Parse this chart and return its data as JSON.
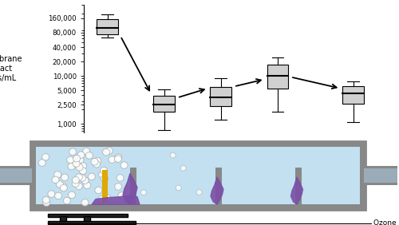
{
  "boxplot_data": {
    "positions": [
      1,
      2.2,
      3.4,
      4.6,
      6.2
    ],
    "boxes": [
      {
        "q1": 75000,
        "median": 100000,
        "q3": 155000,
        "whislo": 63000,
        "whishi": 192000
      },
      {
        "q1": 1800,
        "median": 2500,
        "q3": 3800,
        "whislo": 750,
        "whishi": 5300
      },
      {
        "q1": 2300,
        "median": 3600,
        "q3": 5800,
        "whislo": 1200,
        "whishi": 8800
      },
      {
        "q1": 5500,
        "median": 10000,
        "q3": 17000,
        "whislo": 1800,
        "whishi": 24000
      },
      {
        "q1": 2600,
        "median": 4300,
        "q3": 6200,
        "whislo": 1100,
        "whishi": 7800
      }
    ]
  },
  "box_width": 0.45,
  "yaxis_ticks": [
    1000,
    2500,
    5000,
    10000,
    20000,
    40000,
    80000,
    160000
  ],
  "yaxis_labels": [
    "1,000",
    "2,500",
    "5,000",
    "10,000",
    "20,000",
    "40,000",
    "80,000",
    "160,000"
  ],
  "ylabel": "Membrane\nintact\ncells/mL",
  "box_color": "#d0d0d0",
  "median_color": "#000000",
  "bg_color": "#ffffff",
  "contactor": {
    "outer_fill": "#888888",
    "outer_edge": "#888888",
    "water_fill": "#c2e0f0",
    "bubble_edge": "#aaaaaa",
    "biofilm_color": "#7B4FA6",
    "pipe_color": "#9aacb8",
    "pipe_dark": "#7a8c98",
    "yellow_color": "#e0a800",
    "ozone_gas_label": "Ozone gas"
  }
}
